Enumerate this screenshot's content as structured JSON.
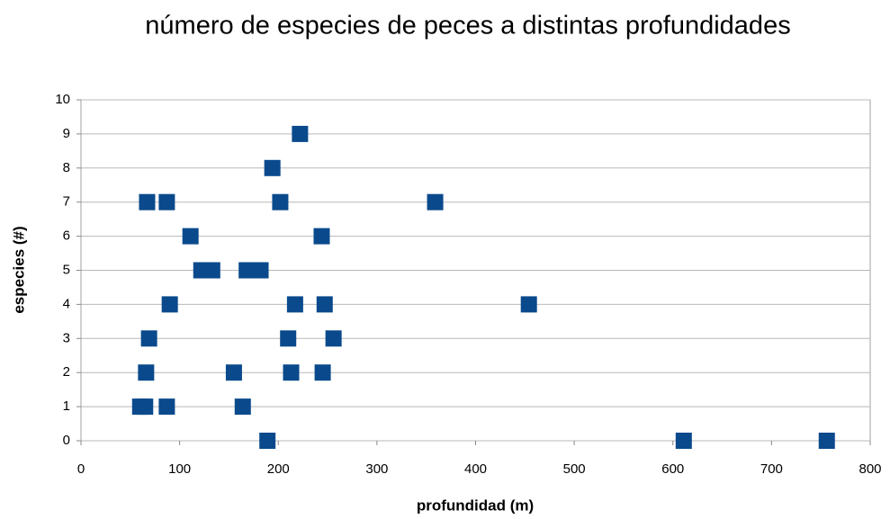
{
  "chart_data": {
    "type": "scatter",
    "title": "número de especies de peces a distintas profundidades",
    "x_label": "profundidad (m)",
    "y_label": "especies (#)",
    "color": "#0a4a8c",
    "grid": true,
    "xlim": [
      0,
      800
    ],
    "ylim": [
      0,
      10
    ],
    "xticks": [
      0,
      100,
      200,
      300,
      400,
      500,
      600,
      700,
      800
    ],
    "yticks": [
      0,
      1,
      2,
      3,
      4,
      5,
      6,
      7,
      8,
      9,
      10
    ],
    "x": [
      60,
      65,
      87,
      164,
      189,
      611,
      756,
      66,
      155,
      213,
      245,
      69,
      210,
      256,
      90,
      217,
      247,
      454,
      122,
      133,
      168,
      182,
      111,
      244,
      67,
      87,
      202,
      359,
      194,
      222
    ],
    "values": [
      1,
      1,
      1,
      1,
      0,
      0,
      0,
      2,
      2,
      2,
      2,
      3,
      3,
      3,
      4,
      4,
      4,
      4,
      5,
      5,
      5,
      5,
      6,
      6,
      7,
      7,
      7,
      7,
      8,
      9
    ]
  }
}
